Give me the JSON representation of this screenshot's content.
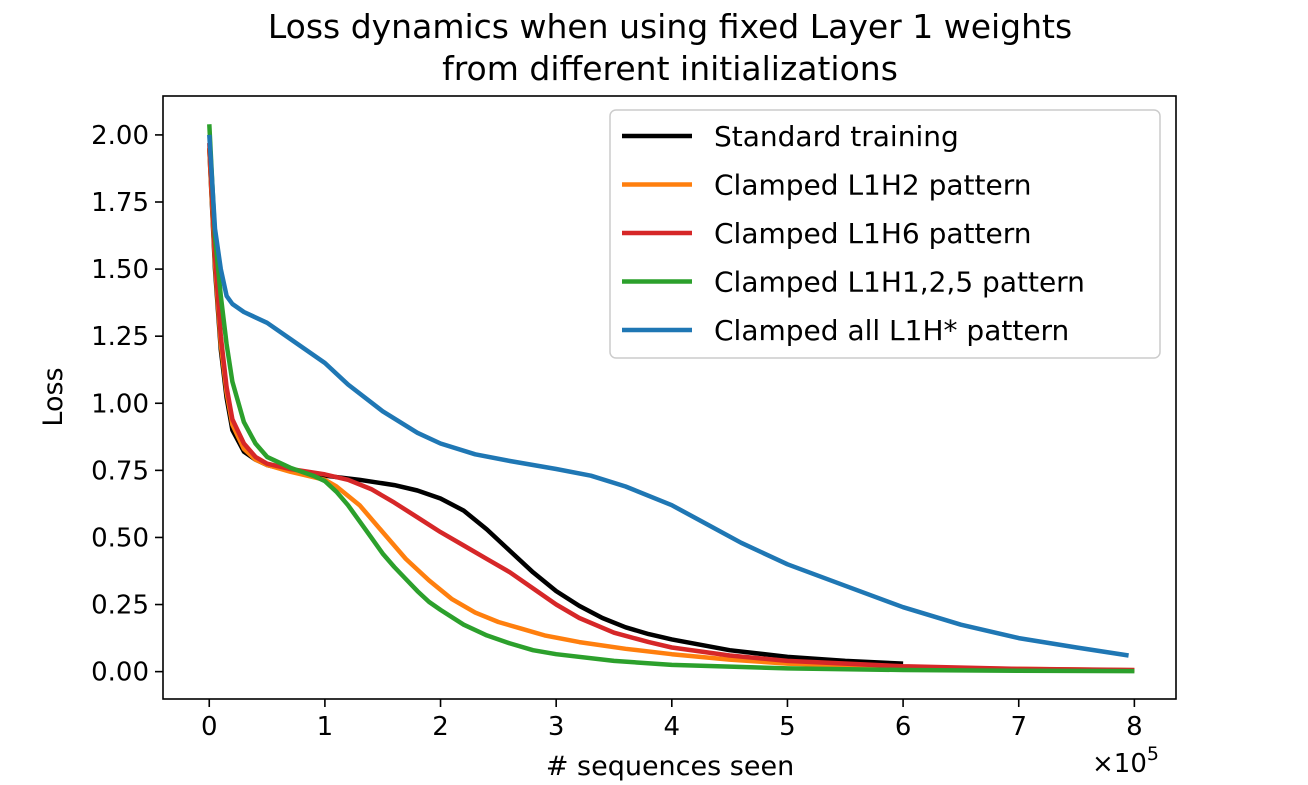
{
  "chart_data": {
    "type": "line",
    "title": [
      "Loss dynamics when using fixed Layer 1 weights",
      "from different initializations"
    ],
    "xlabel": "# sequences seen",
    "ylabel": "Loss",
    "x_scale_label": "×10",
    "x_scale_exponent": "5",
    "xlim": [
      -0.4,
      8.36
    ],
    "ylim": [
      -0.102,
      2.145
    ],
    "x_ticks": [
      0,
      1,
      2,
      3,
      4,
      5,
      6,
      7,
      8
    ],
    "x_tick_labels": [
      "0",
      "1",
      "2",
      "3",
      "4",
      "5",
      "6",
      "7",
      "8"
    ],
    "y_ticks": [
      0,
      0.25,
      0.5,
      0.75,
      1.0,
      1.25,
      1.5,
      1.75,
      2.0
    ],
    "y_tick_labels": [
      "0.00",
      "0.25",
      "0.50",
      "0.75",
      "1.00",
      "1.25",
      "1.50",
      "1.75",
      "2.00"
    ],
    "grid": false,
    "legend_position": "top-right",
    "series": [
      {
        "name": "Standard training",
        "color": "#000000",
        "x": [
          0,
          0.05,
          0.1,
          0.15,
          0.2,
          0.3,
          0.4,
          0.5,
          0.7,
          1.0,
          1.3,
          1.6,
          1.8,
          2.0,
          2.2,
          2.4,
          2.6,
          2.8,
          3.0,
          3.2,
          3.4,
          3.6,
          3.8,
          4.0,
          4.5,
          5.0,
          5.5,
          6.0
        ],
        "y": [
          1.95,
          1.5,
          1.2,
          1.02,
          0.9,
          0.82,
          0.79,
          0.77,
          0.75,
          0.73,
          0.715,
          0.695,
          0.675,
          0.645,
          0.6,
          0.53,
          0.45,
          0.37,
          0.3,
          0.245,
          0.2,
          0.165,
          0.14,
          0.12,
          0.08,
          0.055,
          0.04,
          0.03
        ]
      },
      {
        "name": "Clamped L1H2 pattern",
        "color": "#ff7f0e",
        "x": [
          0,
          0.05,
          0.1,
          0.15,
          0.2,
          0.3,
          0.4,
          0.5,
          0.7,
          1.0,
          1.1,
          1.3,
          1.5,
          1.7,
          1.9,
          2.1,
          2.3,
          2.5,
          2.7,
          2.9,
          3.2,
          3.6,
          4.0,
          4.5,
          5.0,
          6.0,
          7.0,
          8.0
        ],
        "y": [
          1.95,
          1.52,
          1.22,
          1.04,
          0.92,
          0.83,
          0.79,
          0.77,
          0.745,
          0.715,
          0.69,
          0.62,
          0.52,
          0.42,
          0.34,
          0.27,
          0.22,
          0.185,
          0.16,
          0.135,
          0.11,
          0.085,
          0.065,
          0.045,
          0.03,
          0.015,
          0.01,
          0.005
        ]
      },
      {
        "name": "Clamped L1H6 pattern",
        "color": "#d62728",
        "x": [
          0,
          0.05,
          0.1,
          0.15,
          0.2,
          0.3,
          0.4,
          0.5,
          0.7,
          1.0,
          1.2,
          1.4,
          1.6,
          1.8,
          2.0,
          2.2,
          2.4,
          2.6,
          2.8,
          3.0,
          3.2,
          3.5,
          3.8,
          4.0,
          4.5,
          5.0,
          6.0,
          7.0,
          8.0
        ],
        "y": [
          1.97,
          1.55,
          1.25,
          1.06,
          0.94,
          0.85,
          0.8,
          0.775,
          0.755,
          0.735,
          0.715,
          0.68,
          0.63,
          0.575,
          0.52,
          0.47,
          0.42,
          0.37,
          0.31,
          0.25,
          0.2,
          0.145,
          0.11,
          0.09,
          0.06,
          0.04,
          0.02,
          0.01,
          0.006
        ]
      },
      {
        "name": "Clamped L1H1,2,5 pattern",
        "color": "#2ca02c",
        "x": [
          0,
          0.05,
          0.1,
          0.15,
          0.2,
          0.3,
          0.4,
          0.5,
          0.7,
          0.9,
          1.0,
          1.1,
          1.2,
          1.3,
          1.4,
          1.5,
          1.6,
          1.7,
          1.8,
          1.9,
          2.0,
          2.2,
          2.4,
          2.6,
          2.8,
          3.0,
          3.5,
          4.0,
          5.0,
          6.0,
          7.0,
          8.0
        ],
        "y": [
          2.04,
          1.62,
          1.4,
          1.22,
          1.08,
          0.93,
          0.85,
          0.8,
          0.76,
          0.73,
          0.71,
          0.67,
          0.62,
          0.56,
          0.5,
          0.44,
          0.39,
          0.345,
          0.3,
          0.26,
          0.23,
          0.175,
          0.135,
          0.105,
          0.08,
          0.065,
          0.04,
          0.025,
          0.012,
          0.006,
          0.003,
          0.002
        ]
      },
      {
        "name": "Clamped all L1H* pattern",
        "color": "#1f77b4",
        "x": [
          0,
          0.05,
          0.1,
          0.15,
          0.2,
          0.3,
          0.4,
          0.5,
          0.7,
          1.0,
          1.2,
          1.5,
          1.8,
          2.0,
          2.3,
          2.6,
          3.0,
          3.3,
          3.6,
          4.0,
          4.3,
          4.6,
          5.0,
          5.5,
          6.0,
          6.5,
          7.0,
          7.5,
          7.95
        ],
        "y": [
          2.0,
          1.65,
          1.5,
          1.4,
          1.37,
          1.34,
          1.32,
          1.3,
          1.24,
          1.15,
          1.07,
          0.97,
          0.89,
          0.85,
          0.81,
          0.785,
          0.755,
          0.73,
          0.69,
          0.62,
          0.55,
          0.48,
          0.4,
          0.32,
          0.24,
          0.175,
          0.125,
          0.09,
          0.06
        ]
      }
    ]
  }
}
